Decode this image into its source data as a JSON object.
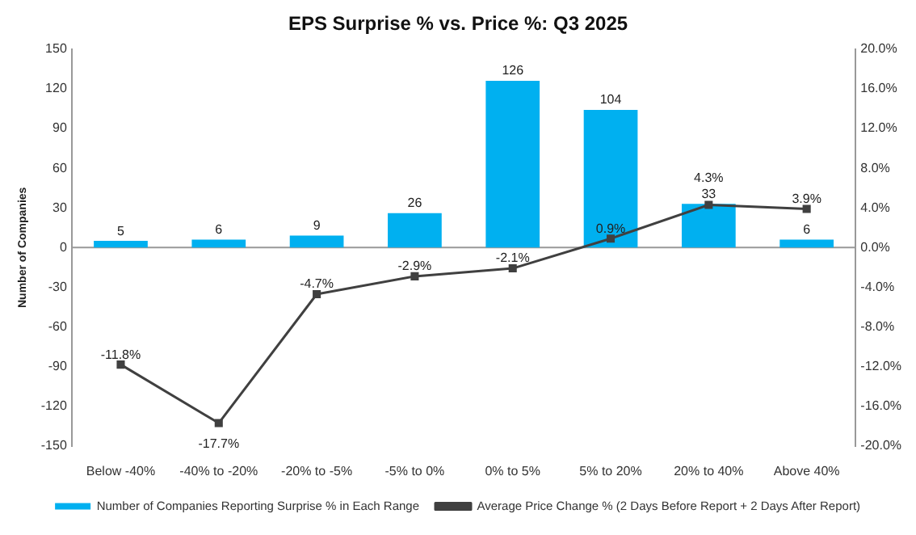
{
  "chart_data": {
    "type": "bar",
    "title": "EPS Surprise % vs. Price %: Q3 2025",
    "ylabel": "Number of Companies",
    "categories": [
      "Below -40%",
      "-40% to -20%",
      "-20% to -5%",
      "-5% to 0%",
      "0% to 5%",
      "5% to 20%",
      "20% to 40%",
      "Above 40%"
    ],
    "series": [
      {
        "name": "Number of Companies Reporting Surprise % in Each Range",
        "color": "#00b0f0",
        "values": [
          5,
          6,
          9,
          26,
          126,
          104,
          33,
          6
        ]
      },
      {
        "name": "Average Price Change % (2 Days Before Report + 2 Days After Report)",
        "type": "line",
        "axis": "y2",
        "color": "#404040",
        "marker": "square",
        "values": [
          -11.8,
          -17.7,
          -4.7,
          -2.9,
          -2.1,
          0.9,
          4.3,
          3.9
        ],
        "value_labels": [
          "-11.8%",
          "-17.7%",
          "-4.7%",
          "-2.9%",
          "-2.1%",
          "0.9%",
          "4.3%",
          "3.9%"
        ]
      }
    ],
    "ylim": [
      -150,
      150
    ],
    "yticks": [
      -150,
      -120,
      -90,
      -60,
      -30,
      0,
      30,
      60,
      90,
      120,
      150
    ],
    "y2lim": [
      -20,
      20
    ],
    "y2ticks": [
      {
        "value": -20,
        "label": "-20.0%"
      },
      {
        "value": -16,
        "label": "-16.0%"
      },
      {
        "value": -12,
        "label": "-12.0%"
      },
      {
        "value": -8,
        "label": "-8.0%"
      },
      {
        "value": -4,
        "label": "-4.0%"
      },
      {
        "value": 0,
        "label": "0.0%"
      },
      {
        "value": 4,
        "label": "4.0%"
      },
      {
        "value": 8,
        "label": "8.0%"
      },
      {
        "value": 12,
        "label": "12.0%"
      },
      {
        "value": 16,
        "label": "16.0%"
      },
      {
        "value": 20,
        "label": "20.0%"
      }
    ],
    "data_labels": true,
    "legend": "bottom"
  }
}
